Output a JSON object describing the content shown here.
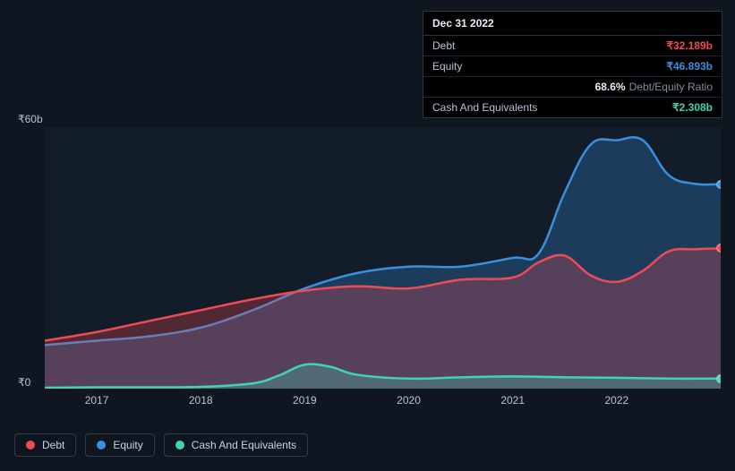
{
  "tooltip": {
    "date": "Dec 31 2022",
    "rows": [
      {
        "label": "Debt",
        "value": "₹32.189b",
        "color": "#ef4b55"
      },
      {
        "label": "Equity",
        "value": "₹46.893b",
        "color": "#3b8fdd"
      },
      {
        "label": "",
        "value": "68.6%",
        "sub": "Debt/Equity Ratio",
        "color": "#e5ecf5"
      },
      {
        "label": "Cash And Equivalents",
        "value": "₹2.308b",
        "color": "#40d5b2"
      }
    ]
  },
  "chart": {
    "type": "area",
    "background_color": "#0f1620",
    "plot_background": "#131c29",
    "grid_color": "#1d2736",
    "ylim": [
      0,
      60
    ],
    "y_ticks": [
      0,
      60
    ],
    "y_tick_labels": [
      "₹0",
      "₹60b"
    ],
    "xlim": [
      2016.5,
      2023.0
    ],
    "x_ticks": [
      2017,
      2018,
      2019,
      2020,
      2021,
      2022
    ],
    "x_tick_labels": [
      "2017",
      "2018",
      "2019",
      "2020",
      "2021",
      "2022"
    ],
    "label_fontsize": 12,
    "label_color": "#b6c1d2",
    "line_width": 2.5,
    "fill_opacity": 0.28,
    "series": [
      {
        "name": "Debt",
        "color": "#ef4b55",
        "x": [
          2016.5,
          2017.0,
          2017.5,
          2018.0,
          2018.5,
          2019.0,
          2019.5,
          2020.0,
          2020.5,
          2021.0,
          2021.25,
          2021.5,
          2021.75,
          2022.0,
          2022.25,
          2022.5,
          2022.75,
          2023.0
        ],
        "y": [
          11.0,
          13.0,
          15.5,
          18.0,
          20.5,
          22.5,
          23.5,
          23.0,
          25.0,
          25.5,
          29.0,
          30.5,
          26.0,
          24.5,
          27.0,
          31.5,
          32.0,
          32.2
        ]
      },
      {
        "name": "Equity",
        "color": "#3b8fdd",
        "x": [
          2016.5,
          2017.0,
          2017.5,
          2018.0,
          2018.5,
          2019.0,
          2019.5,
          2020.0,
          2020.5,
          2021.0,
          2021.25,
          2021.5,
          2021.75,
          2022.0,
          2022.25,
          2022.5,
          2022.75,
          2023.0
        ],
        "y": [
          10.0,
          11.0,
          12.0,
          14.0,
          18.0,
          23.0,
          26.5,
          28.0,
          28.0,
          30.0,
          31.0,
          45.0,
          56.0,
          57.0,
          57.0,
          49.0,
          47.0,
          46.9
        ]
      },
      {
        "name": "Cash And Equivalents",
        "color": "#40d5b2",
        "x": [
          2016.5,
          2017.0,
          2017.5,
          2018.0,
          2018.5,
          2018.75,
          2019.0,
          2019.25,
          2019.5,
          2020.0,
          2020.5,
          2021.0,
          2021.5,
          2022.0,
          2022.5,
          2023.0
        ],
        "y": [
          0.2,
          0.3,
          0.3,
          0.4,
          1.2,
          3.0,
          5.5,
          5.0,
          3.2,
          2.3,
          2.6,
          2.8,
          2.6,
          2.5,
          2.3,
          2.3
        ]
      }
    ]
  },
  "legend": {
    "border_color": "#2f3a4c",
    "text_color": "#c9d3e3",
    "items": [
      {
        "label": "Debt",
        "color": "#ef4b55"
      },
      {
        "label": "Equity",
        "color": "#3b8fdd"
      },
      {
        "label": "Cash And Equivalents",
        "color": "#40d5b2"
      }
    ]
  }
}
